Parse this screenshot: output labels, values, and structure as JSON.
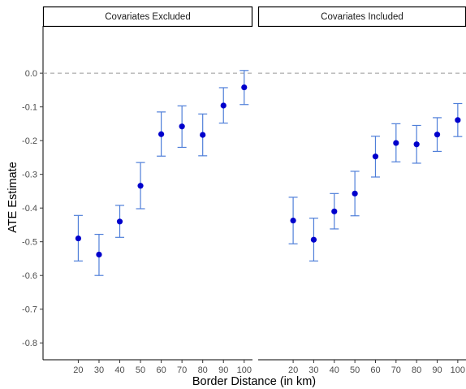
{
  "chart_data": {
    "type": "scatter",
    "subtype": "point-with-error-bars",
    "xlabel": "Border Distance (in km)",
    "ylabel": "ATE Estimate",
    "x_ticks": [
      20,
      30,
      40,
      50,
      60,
      70,
      80,
      90,
      100
    ],
    "y_ticks": [
      0.0,
      -0.1,
      -0.2,
      -0.3,
      -0.4,
      -0.5,
      -0.6,
      -0.7,
      -0.8
    ],
    "y_tick_labels": [
      "0.0",
      "-0.1",
      "-0.2",
      "-0.3",
      "-0.4",
      "-0.5",
      "-0.6",
      "-0.7",
      "-0.8"
    ],
    "ylim": [
      -0.85,
      0.14
    ],
    "xlim": [
      3,
      104
    ],
    "reference_line": {
      "y": 0,
      "style": "dashed",
      "color": "#999999"
    },
    "point_color": "#0000cc",
    "errorbar_color": "#4f7fd9",
    "grid": false,
    "panels": [
      {
        "title": "Covariates Excluded",
        "points": [
          {
            "x": 20,
            "y": -0.49,
            "lower": -0.557,
            "upper": -0.422
          },
          {
            "x": 30,
            "y": -0.538,
            "lower": -0.6,
            "upper": -0.478
          },
          {
            "x": 40,
            "y": -0.44,
            "lower": -0.487,
            "upper": -0.392
          },
          {
            "x": 50,
            "y": -0.334,
            "lower": -0.402,
            "upper": -0.265
          },
          {
            "x": 60,
            "y": -0.181,
            "lower": -0.246,
            "upper": -0.115
          },
          {
            "x": 70,
            "y": -0.158,
            "lower": -0.22,
            "upper": -0.097
          },
          {
            "x": 80,
            "y": -0.183,
            "lower": -0.245,
            "upper": -0.121
          },
          {
            "x": 90,
            "y": -0.096,
            "lower": -0.148,
            "upper": -0.043
          },
          {
            "x": 100,
            "y": -0.042,
            "lower": -0.093,
            "upper": 0.008
          }
        ]
      },
      {
        "title": "Covariates Included",
        "points": [
          {
            "x": 20,
            "y": -0.437,
            "lower": -0.506,
            "upper": -0.368
          },
          {
            "x": 30,
            "y": -0.494,
            "lower": -0.557,
            "upper": -0.43
          },
          {
            "x": 40,
            "y": -0.41,
            "lower": -0.462,
            "upper": -0.357
          },
          {
            "x": 50,
            "y": -0.357,
            "lower": -0.423,
            "upper": -0.291
          },
          {
            "x": 60,
            "y": -0.247,
            "lower": -0.308,
            "upper": -0.187
          },
          {
            "x": 70,
            "y": -0.207,
            "lower": -0.263,
            "upper": -0.15
          },
          {
            "x": 80,
            "y": -0.211,
            "lower": -0.267,
            "upper": -0.155
          },
          {
            "x": 90,
            "y": -0.182,
            "lower": -0.232,
            "upper": -0.132
          },
          {
            "x": 100,
            "y": -0.139,
            "lower": -0.188,
            "upper": -0.09
          }
        ]
      }
    ]
  }
}
